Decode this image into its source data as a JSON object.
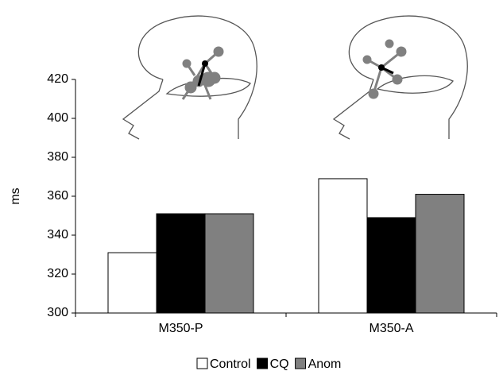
{
  "chart_data": {
    "type": "bar",
    "y_label": "ms",
    "categories": [
      "M350-P",
      "M350-A"
    ],
    "series": [
      {
        "name": "Control",
        "color": "#ffffff",
        "values": [
          331,
          369
        ]
      },
      {
        "name": "CQ",
        "color": "#000000",
        "values": [
          351,
          349
        ]
      },
      {
        "name": "Anom",
        "color": "#808080",
        "values": [
          351,
          361
        ]
      }
    ],
    "ylim": [
      300,
      420
    ],
    "yticks": [
      300,
      320,
      340,
      360,
      380,
      400,
      420
    ],
    "grid": false,
    "legend": "bottom"
  }
}
